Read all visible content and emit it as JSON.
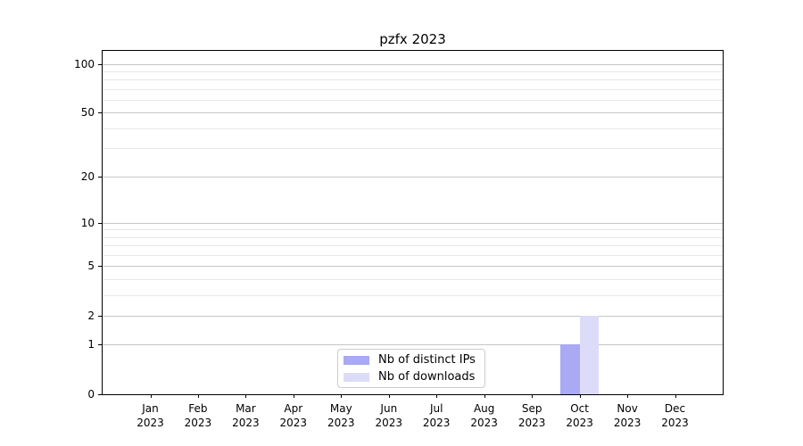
{
  "title": "pzfx 2023",
  "colors": {
    "distinct_ips": "#a9a9f4",
    "downloads": "#dcdcf8",
    "grid_major": "#c6c6c6",
    "grid_minor": "#e8e8e8",
    "axis": "#000000",
    "legend_border": "#cccccc",
    "text": "#000000"
  },
  "legend": {
    "items": [
      {
        "label": "Nb of distinct IPs",
        "color_key": "distinct_ips"
      },
      {
        "label": "Nb of downloads",
        "color_key": "downloads"
      }
    ]
  },
  "chart_data": {
    "type": "bar",
    "title": "pzfx 2023",
    "x_months": [
      "Jan",
      "Feb",
      "Mar",
      "Apr",
      "May",
      "Jun",
      "Jul",
      "Aug",
      "Sep",
      "Oct",
      "Nov",
      "Dec"
    ],
    "x_year": "2023",
    "series": [
      {
        "name": "Nb of distinct IPs",
        "color_key": "distinct_ips",
        "values": [
          0,
          0,
          0,
          0,
          0,
          0,
          0,
          0,
          0,
          1,
          0,
          0
        ]
      },
      {
        "name": "Nb of downloads",
        "color_key": "downloads",
        "values": [
          0,
          0,
          0,
          0,
          0,
          0,
          0,
          0,
          0,
          2,
          0,
          0
        ]
      }
    ],
    "y_scale": "log1p",
    "y_major_ticks": [
      0,
      1,
      2,
      5,
      10,
      20,
      50,
      100
    ],
    "y_minor_gridlines": [
      3,
      4,
      6,
      7,
      8,
      9,
      30,
      40,
      60,
      70,
      80,
      90
    ],
    "ylim": [
      0,
      120
    ],
    "grid": true,
    "legend_position": "lower center"
  }
}
